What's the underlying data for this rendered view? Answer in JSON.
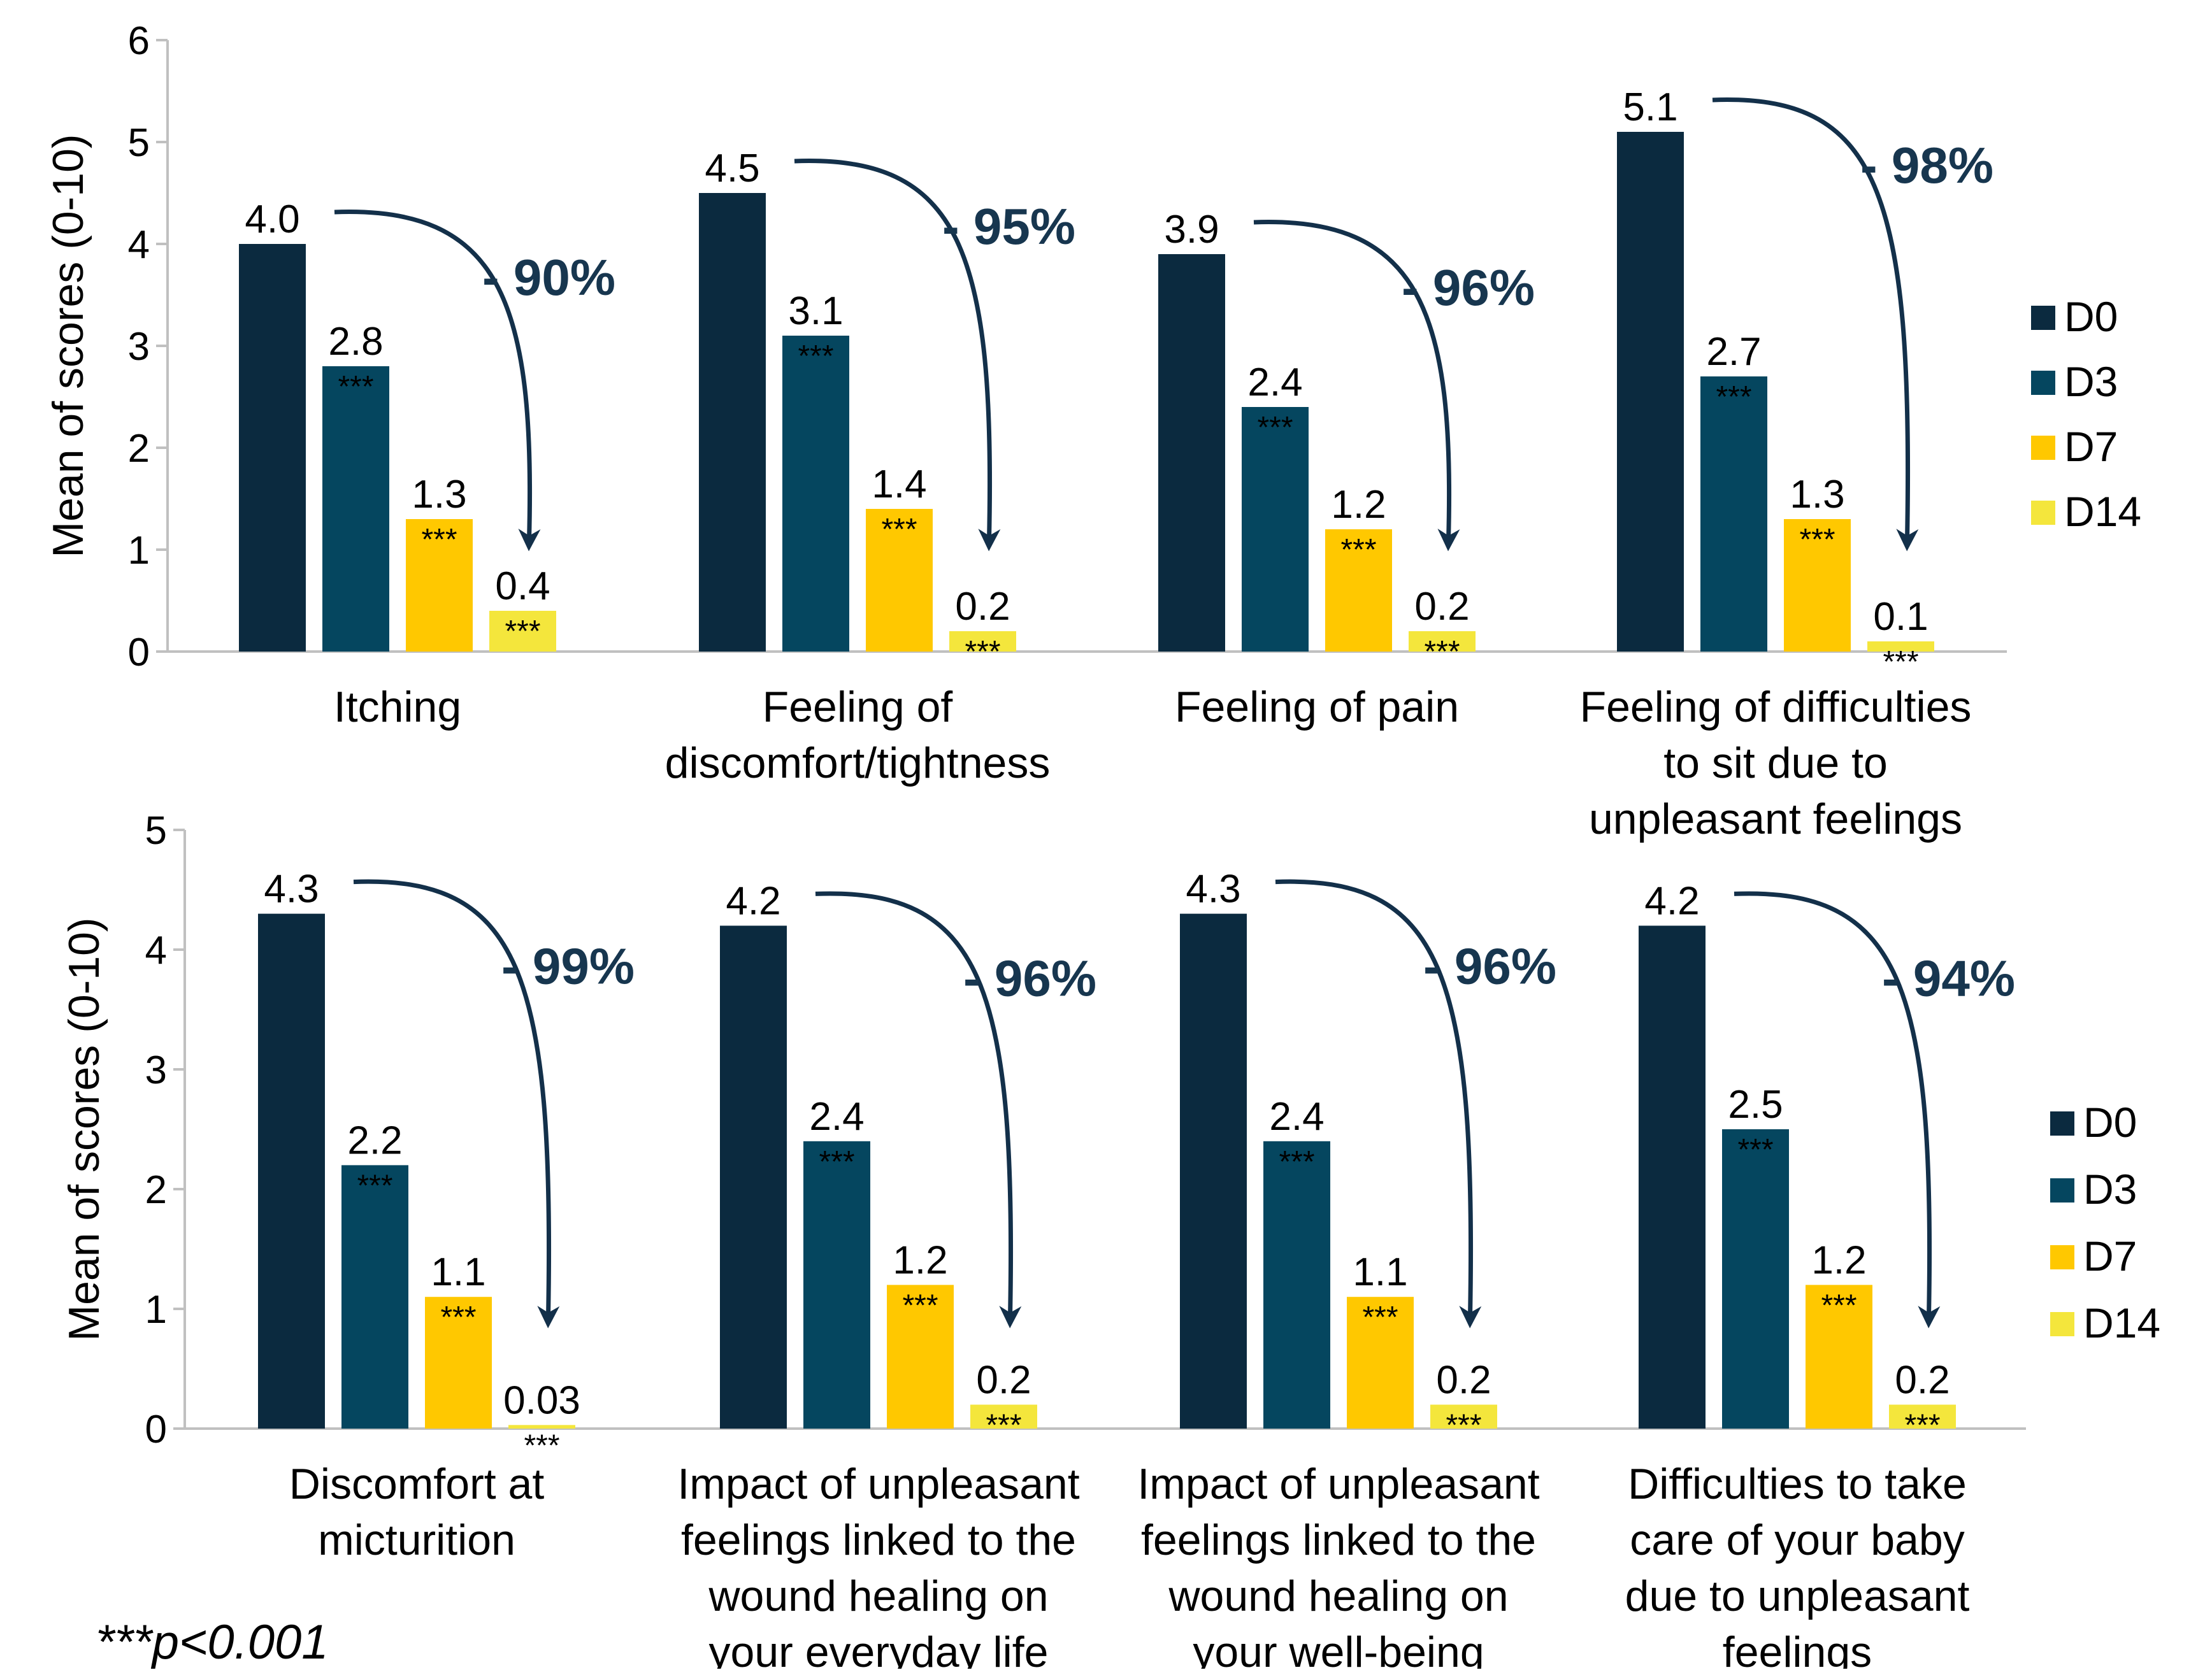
{
  "colors": {
    "D0": "#0b2a3f",
    "D3": "#05465f",
    "D7": "#ffc800",
    "D14": "#f4e63c",
    "arrow": "#13304a",
    "axis": "#c0c0c0"
  },
  "footnote": "***p<0.001",
  "chart_data": [
    {
      "type": "bar",
      "ylabel": "Mean of scores (0-10)",
      "ylim": [
        0,
        6
      ],
      "yticks": [
        "0",
        "1",
        "2",
        "3",
        "4",
        "5",
        "6"
      ],
      "legend": [
        "D0",
        "D3",
        "D7",
        "D14"
      ],
      "legend_position": "right",
      "significance_marker": "***",
      "groups": [
        {
          "label_lines": [
            "Itching"
          ],
          "values": [
            4.0,
            2.8,
            1.3,
            0.4
          ],
          "labels": [
            "4.0",
            "2.8",
            "1.3",
            "0.4"
          ],
          "reduction": "- 90%"
        },
        {
          "label_lines": [
            "Feeling of",
            "discomfort/tightness"
          ],
          "values": [
            4.5,
            3.1,
            1.4,
            0.2
          ],
          "labels": [
            "4.5",
            "3.1",
            "1.4",
            "0.2"
          ],
          "reduction": "- 95%"
        },
        {
          "label_lines": [
            "Feeling of pain"
          ],
          "values": [
            3.9,
            2.4,
            1.2,
            0.2
          ],
          "labels": [
            "3.9",
            "2.4",
            "1.2",
            "0.2"
          ],
          "reduction": "- 96%"
        },
        {
          "label_lines": [
            "Feeling of difficulties",
            "to sit due to",
            "unpleasant feelings"
          ],
          "values": [
            5.1,
            2.7,
            1.3,
            0.1
          ],
          "labels": [
            "5.1",
            "2.7",
            "1.3",
            "0.1"
          ],
          "reduction": "- 98%"
        }
      ]
    },
    {
      "type": "bar",
      "ylabel": "Mean of scores (0-10)",
      "ylim": [
        0,
        5
      ],
      "yticks": [
        "0",
        "1",
        "2",
        "3",
        "4",
        "5"
      ],
      "legend": [
        "D0",
        "D3",
        "D7",
        "D14"
      ],
      "legend_position": "right",
      "significance_marker": "***",
      "groups": [
        {
          "label_lines": [
            "Discomfort at",
            "micturition"
          ],
          "values": [
            4.3,
            2.2,
            1.1,
            0.03
          ],
          "labels": [
            "4.3",
            "2.2",
            "1.1",
            "0.03"
          ],
          "reduction": "- 99%"
        },
        {
          "label_lines": [
            "Impact of unpleasant",
            "feelings linked to the",
            "wound healing on",
            "your everyday life"
          ],
          "values": [
            4.2,
            2.4,
            1.2,
            0.2
          ],
          "labels": [
            "4.2",
            "2.4",
            "1.2",
            "0.2"
          ],
          "reduction": "- 96%"
        },
        {
          "label_lines": [
            "Impact of unpleasant",
            "feelings linked to the",
            "wound healing on",
            "your well-being"
          ],
          "values": [
            4.3,
            2.4,
            1.1,
            0.2
          ],
          "labels": [
            "4.3",
            "2.4",
            "1.1",
            "0.2"
          ],
          "reduction": "- 96%"
        },
        {
          "label_lines": [
            "Difficulties to take",
            "care of your baby",
            "due to unpleasant",
            "feelings"
          ],
          "values": [
            4.2,
            2.5,
            1.2,
            0.2
          ],
          "labels": [
            "4.2",
            "2.5",
            "1.2",
            "0.2"
          ],
          "reduction": "- 94%"
        }
      ]
    }
  ]
}
